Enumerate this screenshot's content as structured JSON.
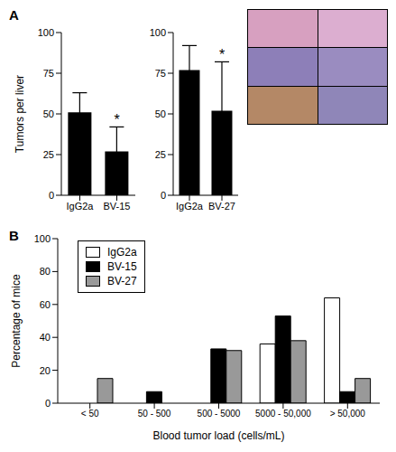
{
  "chart_data": [
    {
      "type": "bar",
      "title": "A",
      "categories": [
        "IgG2a",
        "BV-15"
      ],
      "values": [
        51,
        27
      ],
      "errors": [
        12,
        15
      ],
      "color": "#000000",
      "y_label": "Tumors per liver",
      "ylim": [
        0,
        100
      ],
      "yticks": [
        0,
        25,
        50,
        75,
        100
      ],
      "annotations": [
        {
          "category": "BV-15",
          "text": "*"
        }
      ]
    },
    {
      "type": "bar",
      "categories": [
        "IgG2a",
        "BV-27"
      ],
      "values": [
        77,
        52
      ],
      "errors": [
        15,
        30
      ],
      "color": "#000000",
      "ylim": [
        0,
        100
      ],
      "yticks": [
        0,
        25,
        50,
        75,
        100
      ],
      "annotations": [
        {
          "category": "BV-27",
          "text": "*"
        }
      ]
    },
    {
      "type": "bar",
      "title": "B",
      "categories": [
        "< 50",
        "50 - 500",
        "500 - 5000",
        "5000 - 50,000",
        "> 50,000"
      ],
      "x_label": "Blood tumor load (cells/mL)",
      "y_label": "Percentage of mice",
      "ylim": [
        0,
        100
      ],
      "yticks": [
        0,
        20,
        40,
        60,
        80,
        100
      ],
      "legend": "upper left",
      "series": [
        {
          "name": "IgG2a",
          "color": "#ffffff",
          "values": [
            0,
            0,
            0,
            36,
            64
          ]
        },
        {
          "name": "BV-15",
          "color": "#000000",
          "values": [
            0,
            7,
            33,
            53,
            7
          ]
        },
        {
          "name": "BV-27",
          "color": "#999999",
          "values": [
            15,
            0,
            32,
            38,
            15
          ]
        }
      ]
    }
  ]
}
